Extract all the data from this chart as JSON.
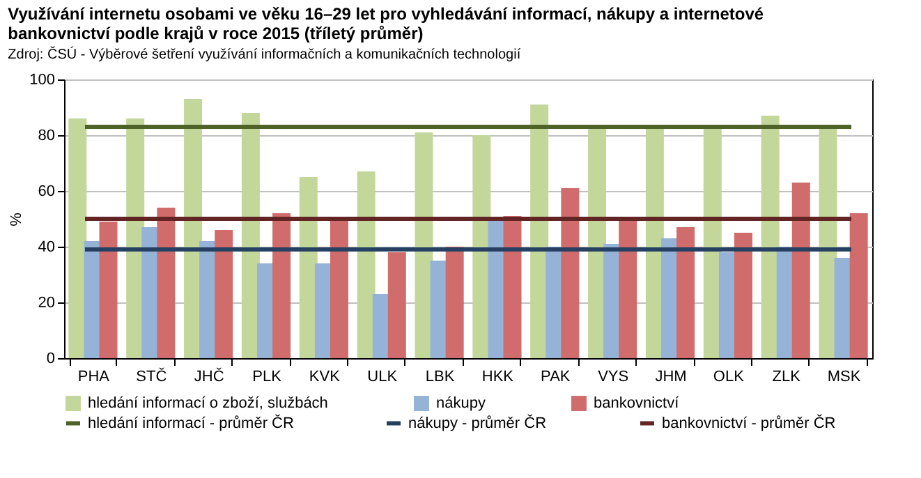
{
  "chart_data": {
    "type": "bar",
    "title": "Využívání internetu osobami ve věku 16–29 let pro vyhledávání informací, nákupy a internetové bankovnictví podle krajů v roce 2015 (tříletý průměr)",
    "subtitle": "Zdroj: ČSÚ  - Výběrové šetření využívání informačních a komunikačních technologií",
    "ylabel": "%",
    "categories": [
      "PHA",
      "STČ",
      "JHČ",
      "PLK",
      "KVK",
      "ULK",
      "LBK",
      "HKK",
      "PAK",
      "VYS",
      "JHM",
      "OLK",
      "ZLK",
      "MSK"
    ],
    "series": [
      {
        "name": "hledání informací o zboží, službách",
        "color": "#c4d79b",
        "values": [
          86,
          86,
          93,
          88,
          65,
          67,
          81,
          80,
          91,
          83,
          83,
          83,
          87,
          83
        ]
      },
      {
        "name": "nákupy",
        "color": "#95b3d7",
        "values": [
          42,
          47,
          42,
          34,
          34,
          23,
          35,
          50,
          40,
          41,
          43,
          38,
          40,
          36
        ]
      },
      {
        "name": "bankovnictví",
        "color": "#d06c6c",
        "values": [
          49,
          54,
          46,
          52,
          50,
          38,
          40,
          51,
          61,
          50,
          47,
          45,
          63,
          52
        ]
      }
    ],
    "ref_lines": [
      {
        "axis": "y",
        "value": 83,
        "label": "hledání informací - průměr ČR",
        "color": "#4f6228"
      },
      {
        "axis": "y",
        "value": 39,
        "label": "nákupy - průměr ČR",
        "color": "#254061"
      },
      {
        "axis": "y",
        "value": 50,
        "label": "bankovnictví - průměr ČR",
        "color": "#632523"
      }
    ],
    "ylim": [
      0,
      100
    ],
    "yticks": [
      0,
      20,
      40,
      60,
      80,
      100
    ],
    "grid": "y",
    "legend": "bottom"
  }
}
